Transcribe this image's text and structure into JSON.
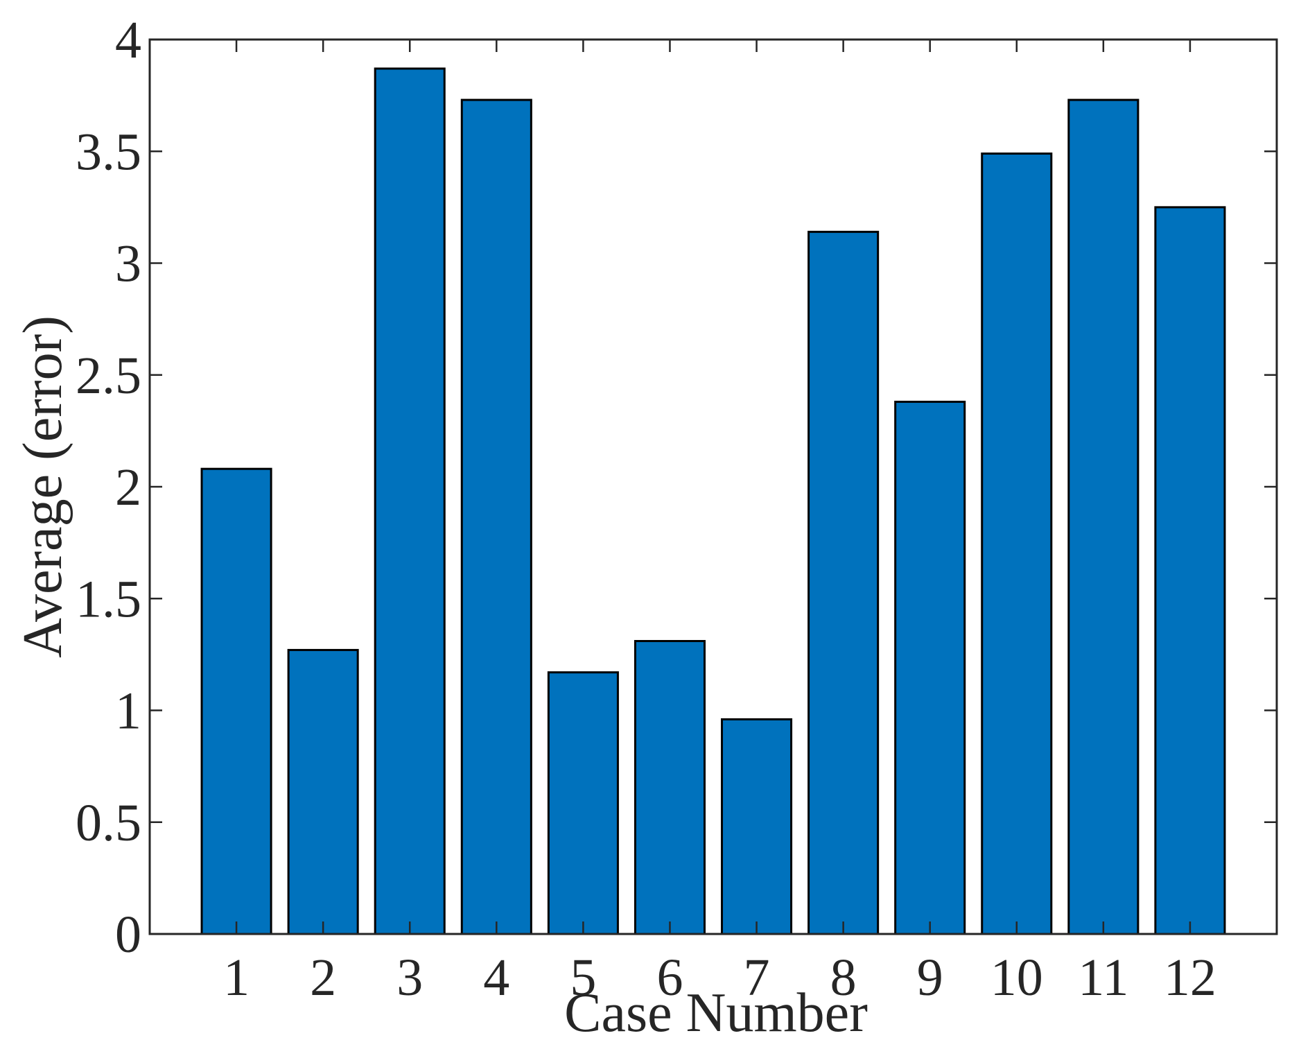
{
  "chart_data": {
    "type": "bar",
    "categories": [
      "1",
      "2",
      "3",
      "4",
      "5",
      "6",
      "7",
      "8",
      "9",
      "10",
      "11",
      "12"
    ],
    "values": [
      2.08,
      1.27,
      3.87,
      3.73,
      1.17,
      1.31,
      0.96,
      3.14,
      2.38,
      3.49,
      3.73,
      3.25
    ],
    "xlabel": "Case Number",
    "ylabel": "Average (error)",
    "ylim": [
      0,
      4
    ],
    "yticks": [
      0,
      0.5,
      1,
      1.5,
      2,
      2.5,
      3,
      3.5,
      4
    ],
    "ytick_labels": [
      "0",
      "0.5",
      "1",
      "1.5",
      "2",
      "2.5",
      "3",
      "3.5",
      "4"
    ],
    "xlim": [
      0,
      13
    ],
    "grid": false,
    "legend": "none",
    "bar_color": "#0072bd",
    "edge_color": "#000000"
  }
}
